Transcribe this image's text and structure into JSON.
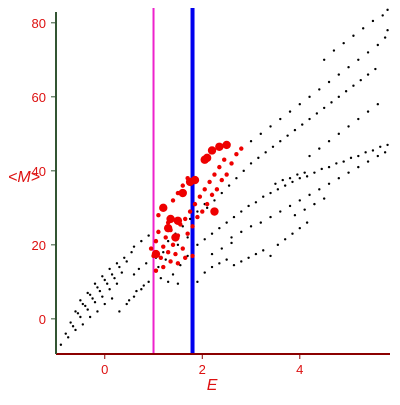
{
  "chart_data": {
    "type": "scatter",
    "xlabel": "E",
    "ylabel": "<M>",
    "xlim": [
      -1.0,
      5.85
    ],
    "ylim": [
      -9.5,
      84.0
    ],
    "x_ticks": [
      0,
      2,
      4
    ],
    "y_ticks": [
      0,
      20,
      40,
      60,
      80
    ],
    "grid": false,
    "legend": null,
    "colors": {
      "axis_x": "#8b0000",
      "axis_y": "#335533",
      "tick_labels": "#dd1111",
      "background_points": "#000000",
      "highlight_points": "#ee0000",
      "line_magenta": "#ee22cc",
      "line_blue": "#0000ee"
    },
    "vertical_lines": [
      {
        "x": 1.0,
        "color": "#ee22cc",
        "width": 2
      },
      {
        "x": 1.8,
        "color": "#0000ee",
        "width": 4
      }
    ],
    "series": [
      {
        "color": "#000000",
        "marker_size": 1.2,
        "points": [
          [
            -0.9,
            -7.0
          ],
          [
            -0.75,
            -5.0
          ],
          [
            -0.6,
            -3.0
          ],
          [
            -0.45,
            -1.5
          ],
          [
            -0.3,
            0.5
          ],
          [
            -0.15,
            2.0
          ],
          [
            0.0,
            4.0
          ],
          [
            0.15,
            5.5
          ],
          [
            -0.8,
            -4.0
          ],
          [
            -0.65,
            -2.0
          ],
          [
            -0.5,
            0.5
          ],
          [
            -0.35,
            2.5
          ],
          [
            -0.2,
            4.5
          ],
          [
            -0.05,
            6.0
          ],
          [
            0.1,
            8.0
          ],
          [
            0.25,
            9.5
          ],
          [
            -0.7,
            -1.0
          ],
          [
            -0.55,
            1.5
          ],
          [
            -0.4,
            3.5
          ],
          [
            -0.25,
            5.5
          ],
          [
            -0.1,
            7.5
          ],
          [
            0.05,
            9.5
          ],
          [
            0.2,
            11.0
          ],
          [
            0.35,
            12.5
          ],
          [
            -0.6,
            2.0
          ],
          [
            -0.45,
            4.0
          ],
          [
            -0.3,
            6.5
          ],
          [
            -0.15,
            8.5
          ],
          [
            0.0,
            10.5
          ],
          [
            0.15,
            12.0
          ],
          [
            0.3,
            14.0
          ],
          [
            0.45,
            15.5
          ],
          [
            -0.5,
            5.0
          ],
          [
            -0.35,
            7.0
          ],
          [
            -0.2,
            9.5
          ],
          [
            -0.05,
            11.5
          ],
          [
            0.1,
            13.5
          ],
          [
            0.25,
            15.0
          ],
          [
            0.4,
            16.5
          ],
          [
            0.55,
            18.0
          ],
          [
            0.3,
            2.0
          ],
          [
            0.45,
            4.0
          ],
          [
            0.6,
            6.0
          ],
          [
            0.75,
            8.0
          ],
          [
            0.9,
            10.0
          ],
          [
            0.5,
            5.0
          ],
          [
            0.65,
            7.5
          ],
          [
            0.8,
            9.0
          ],
          [
            0.6,
            12.0
          ],
          [
            0.7,
            13.5
          ],
          [
            0.85,
            15.0
          ],
          [
            1.05,
            16.5
          ],
          [
            1.2,
            18.0
          ],
          [
            0.6,
            19.5
          ],
          [
            0.75,
            21.0
          ],
          [
            0.9,
            22.5
          ],
          [
            1.1,
            14.0
          ],
          [
            1.25,
            16.0
          ],
          [
            1.4,
            12.0
          ],
          [
            1.55,
            14.5
          ],
          [
            1.7,
            17.0
          ],
          [
            1.15,
            11.0
          ],
          [
            1.3,
            10.0
          ],
          [
            1.5,
            9.5
          ],
          [
            1.9,
            10.0
          ],
          [
            2.05,
            12.5
          ],
          [
            2.2,
            14.0
          ],
          [
            2.35,
            15.0
          ],
          [
            2.5,
            16.0
          ],
          [
            2.65,
            14.5
          ],
          [
            2.8,
            15.5
          ],
          [
            2.95,
            16.5
          ],
          [
            3.1,
            17.5
          ],
          [
            3.25,
            18.5
          ],
          [
            3.4,
            17.0
          ],
          [
            3.55,
            20.0
          ],
          [
            3.7,
            21.5
          ],
          [
            3.85,
            23.0
          ],
          [
            4.0,
            24.5
          ],
          [
            4.15,
            26.0
          ],
          [
            1.9,
            20.0
          ],
          [
            2.05,
            21.5
          ],
          [
            2.2,
            23.0
          ],
          [
            2.35,
            24.5
          ],
          [
            2.5,
            26.0
          ],
          [
            2.65,
            27.5
          ],
          [
            2.8,
            29.0
          ],
          [
            2.95,
            30.5
          ],
          [
            3.1,
            31.5
          ],
          [
            3.25,
            33.0
          ],
          [
            3.4,
            34.0
          ],
          [
            3.55,
            35.0
          ],
          [
            3.7,
            36.0
          ],
          [
            3.85,
            37.0
          ],
          [
            4.0,
            38.0
          ],
          [
            4.15,
            38.5
          ],
          [
            4.3,
            39.5
          ],
          [
            4.45,
            40.5
          ],
          [
            4.6,
            41.0
          ],
          [
            4.75,
            42.0
          ],
          [
            4.9,
            42.5
          ],
          [
            5.05,
            43.5
          ],
          [
            5.2,
            44.0
          ],
          [
            5.35,
            45.0
          ],
          [
            5.5,
            45.5
          ],
          [
            5.65,
            46.5
          ],
          [
            5.8,
            47.0
          ],
          [
            3.5,
            36.5
          ],
          [
            3.65,
            37.5
          ],
          [
            3.8,
            38.0
          ],
          [
            3.95,
            39.0
          ],
          [
            4.1,
            39.5
          ],
          [
            2.1,
            30.0
          ],
          [
            2.25,
            32.0
          ],
          [
            2.4,
            34.0
          ],
          [
            2.55,
            36.0
          ],
          [
            2.7,
            38.0
          ],
          [
            2.85,
            40.0
          ],
          [
            3.0,
            42.0
          ],
          [
            3.15,
            43.5
          ],
          [
            3.3,
            45.0
          ],
          [
            3.45,
            46.5
          ],
          [
            3.6,
            48.0
          ],
          [
            3.75,
            49.5
          ],
          [
            3.9,
            51.0
          ],
          [
            4.05,
            52.5
          ],
          [
            4.2,
            54.0
          ],
          [
            4.35,
            55.5
          ],
          [
            4.5,
            57.0
          ],
          [
            4.65,
            58.5
          ],
          [
            4.8,
            60.0
          ],
          [
            4.95,
            61.5
          ],
          [
            5.1,
            63.0
          ],
          [
            5.25,
            64.5
          ],
          [
            5.4,
            66.0
          ],
          [
            5.55,
            67.5
          ],
          [
            3.0,
            48.0
          ],
          [
            3.2,
            50.0
          ],
          [
            3.4,
            52.0
          ],
          [
            3.6,
            54.0
          ],
          [
            3.8,
            56.0
          ],
          [
            4.0,
            58.0
          ],
          [
            4.2,
            60.0
          ],
          [
            4.4,
            62.0
          ],
          [
            4.6,
            64.0
          ],
          [
            4.8,
            66.0
          ],
          [
            5.0,
            68.0
          ],
          [
            5.2,
            70.0
          ],
          [
            5.4,
            72.0
          ],
          [
            5.6,
            74.0
          ],
          [
            5.75,
            76.0
          ],
          [
            5.8,
            78.0
          ],
          [
            4.5,
            70.0
          ],
          [
            4.7,
            72.5
          ],
          [
            4.9,
            74.5
          ],
          [
            5.1,
            76.5
          ],
          [
            5.3,
            78.5
          ],
          [
            5.5,
            80.5
          ],
          [
            5.7,
            82.0
          ],
          [
            5.8,
            83.5
          ],
          [
            4.2,
            44.0
          ],
          [
            4.4,
            46.0
          ],
          [
            4.6,
            48.0
          ],
          [
            4.8,
            50.0
          ],
          [
            5.0,
            52.0
          ],
          [
            5.2,
            54.0
          ],
          [
            5.4,
            56.0
          ],
          [
            5.6,
            58.0
          ],
          [
            3.2,
            26.0
          ],
          [
            3.4,
            27.5
          ],
          [
            3.6,
            29.0
          ],
          [
            3.8,
            30.5
          ],
          [
            4.0,
            32.0
          ],
          [
            4.2,
            33.5
          ],
          [
            4.4,
            35.0
          ],
          [
            4.6,
            36.5
          ],
          [
            4.8,
            38.0
          ],
          [
            5.0,
            39.5
          ],
          [
            5.2,
            41.0
          ],
          [
            5.4,
            42.5
          ],
          [
            5.6,
            44.0
          ],
          [
            5.75,
            45.0
          ],
          [
            2.6,
            22.0
          ],
          [
            2.8,
            23.5
          ],
          [
            3.0,
            25.0
          ],
          [
            2.4,
            19.0
          ],
          [
            2.6,
            20.5
          ],
          [
            2.2,
            17.5
          ],
          [
            3.9,
            28.0
          ],
          [
            4.1,
            29.5
          ],
          [
            4.3,
            31.0
          ],
          [
            4.5,
            32.5
          ],
          [
            1.3,
            21.0
          ],
          [
            1.45,
            23.0
          ],
          [
            1.6,
            25.0
          ],
          [
            1.75,
            27.0
          ],
          [
            1.9,
            29.0
          ],
          [
            2.05,
            31.0
          ],
          [
            1.5,
            20.0
          ],
          [
            1.7,
            22.0
          ]
        ]
      },
      {
        "color": "#ee0000",
        "marker_size": 2.2,
        "points": [
          [
            0.95,
            19.0
          ],
          [
            1.0,
            17.0
          ],
          [
            1.05,
            21.0
          ],
          [
            1.1,
            23.5
          ],
          [
            1.15,
            16.5
          ],
          [
            1.2,
            19.5
          ],
          [
            1.25,
            22.0
          ],
          [
            1.3,
            18.0
          ],
          [
            1.35,
            24.0
          ],
          [
            1.4,
            20.0
          ],
          [
            1.45,
            17.5
          ],
          [
            1.5,
            22.5
          ],
          [
            1.55,
            25.5
          ],
          [
            1.6,
            19.0
          ],
          [
            1.65,
            27.0
          ],
          [
            1.7,
            23.0
          ],
          [
            1.75,
            29.0
          ],
          [
            1.8,
            25.0
          ],
          [
            1.85,
            31.0
          ],
          [
            1.9,
            27.5
          ],
          [
            1.95,
            33.0
          ],
          [
            2.0,
            29.0
          ],
          [
            2.05,
            35.0
          ],
          [
            2.1,
            31.0
          ],
          [
            2.15,
            37.0
          ],
          [
            2.2,
            33.5
          ],
          [
            2.25,
            39.0
          ],
          [
            2.3,
            35.0
          ],
          [
            2.35,
            41.0
          ],
          [
            2.4,
            37.5
          ],
          [
            2.45,
            43.0
          ],
          [
            2.5,
            39.0
          ],
          [
            1.1,
            28.0
          ],
          [
            1.2,
            30.0
          ],
          [
            1.3,
            26.0
          ],
          [
            1.4,
            32.0
          ],
          [
            1.5,
            34.0
          ],
          [
            1.6,
            36.0
          ],
          [
            1.7,
            38.0
          ],
          [
            2.6,
            42.0
          ],
          [
            2.7,
            44.5
          ],
          [
            2.8,
            46.0
          ],
          [
            1.05,
            13.0
          ],
          [
            1.2,
            14.0
          ],
          [
            1.35,
            15.5
          ],
          [
            1.5,
            15.0
          ],
          [
            1.65,
            16.5
          ],
          [
            1.8,
            17.0
          ]
        ]
      },
      {
        "color": "#ee0000",
        "marker_size": 4.2,
        "points": [
          [
            1.2,
            30.0
          ],
          [
            1.35,
            27.0
          ],
          [
            1.5,
            26.5
          ],
          [
            1.6,
            34.0
          ],
          [
            1.75,
            37.0
          ],
          [
            1.85,
            37.5
          ],
          [
            2.05,
            43.0
          ],
          [
            2.1,
            43.5
          ],
          [
            2.2,
            45.5
          ],
          [
            2.35,
            46.5
          ],
          [
            2.5,
            47.0
          ],
          [
            1.45,
            22.0
          ],
          [
            1.3,
            24.5
          ],
          [
            2.25,
            29.0
          ],
          [
            1.05,
            17.5
          ]
        ]
      }
    ]
  }
}
